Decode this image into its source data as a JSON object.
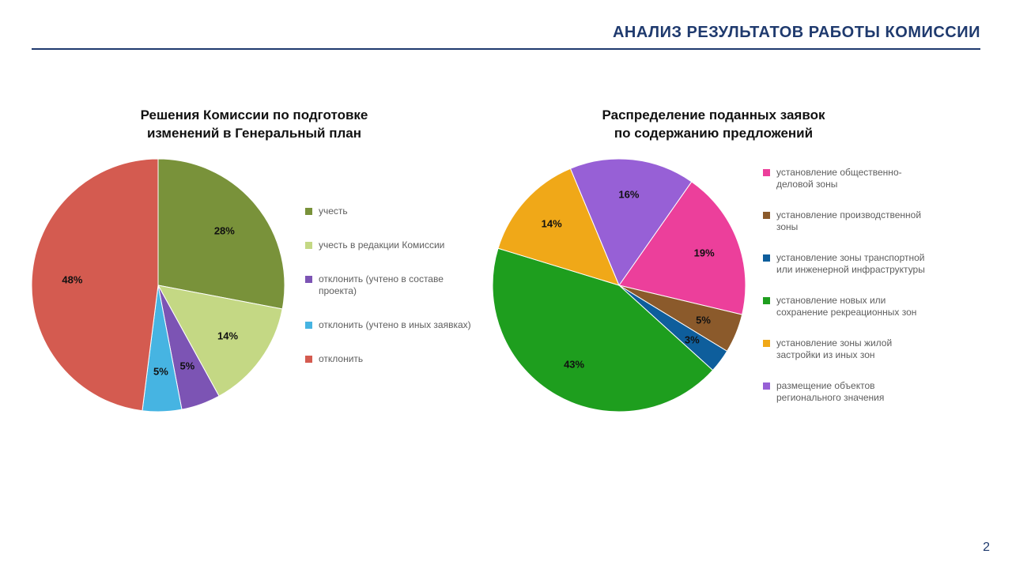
{
  "page": {
    "background_color": "#ffffff",
    "page_number": "2",
    "page_number_color": "#1f3a6e",
    "page_number_fontsize": 16
  },
  "header": {
    "title": "АНАЛИЗ РЕЗУЛЬТАТОВ РАБОТЫ КОМИССИИ",
    "title_color": "#1f3a6e",
    "title_fontsize": 20,
    "rule_color": "#1f3a6e",
    "rule_thickness": 2
  },
  "chart_left": {
    "type": "pie",
    "title": "Решения Комиссии по подготовке\nизменений в Генеральный план",
    "title_fontsize": 17,
    "title_color": "#111111",
    "diameter": 320,
    "start_angle_from_12oclock": 0,
    "label_fontsize": 13,
    "label_color": "#111111",
    "label_radius_ratio": 0.68,
    "legend_fontsize": 12,
    "legend_color": "#5e5e5e",
    "legend_gap": 28,
    "legend_swatch_size": 9,
    "legend_left_margin": 26,
    "slices": [
      {
        "label": "учесть",
        "value": 28,
        "display": "28%",
        "color": "#79923a"
      },
      {
        "label": "учесть в редакции Комиссии",
        "value": 14,
        "display": "14%",
        "color": "#c4d884"
      },
      {
        "label": "отклонить (учтено в составе проекта)",
        "value": 5,
        "display": "5%",
        "color": "#7c54b4"
      },
      {
        "label": "отклонить (учтено в иных заявках)",
        "value": 5,
        "display": "5%",
        "color": "#46b4e2"
      },
      {
        "label": "отклонить",
        "value": 48,
        "display": "48%",
        "color": "#d45b50"
      }
    ]
  },
  "chart_right": {
    "type": "pie",
    "title": "Распределение поданных заявок\nпо содержанию предложений",
    "title_fontsize": 17,
    "title_color": "#111111",
    "diameter": 320,
    "start_angle_from_12oclock": 35,
    "label_fontsize": 13,
    "label_color": "#111111",
    "label_radius_ratio": 0.72,
    "legend_fontsize": 12,
    "legend_color": "#5e5e5e",
    "legend_gap": 24,
    "legend_swatch_size": 9,
    "legend_left_margin": 22,
    "slices": [
      {
        "label": "установление общественно-деловой зоны",
        "value": 19,
        "display": "19%",
        "color": "#ec3f9b"
      },
      {
        "label": "установление производственной зоны",
        "value": 5,
        "display": "5%",
        "color": "#8b5a2b"
      },
      {
        "label": "установление зоны транспортной или инженерной инфраструктуры",
        "value": 3,
        "display": "3%",
        "color": "#0e5e9c"
      },
      {
        "label": "установление новых или сохранение рекреационных зон",
        "value": 43,
        "display": "43%",
        "color": "#1e9e1e"
      },
      {
        "label": "установление зоны жилой застройки из иных зон",
        "value": 14,
        "display": "14%",
        "color": "#f0a818"
      },
      {
        "label": "размещение объектов регионального значения",
        "value": 16,
        "display": "16%",
        "color": "#9760d6"
      }
    ]
  }
}
